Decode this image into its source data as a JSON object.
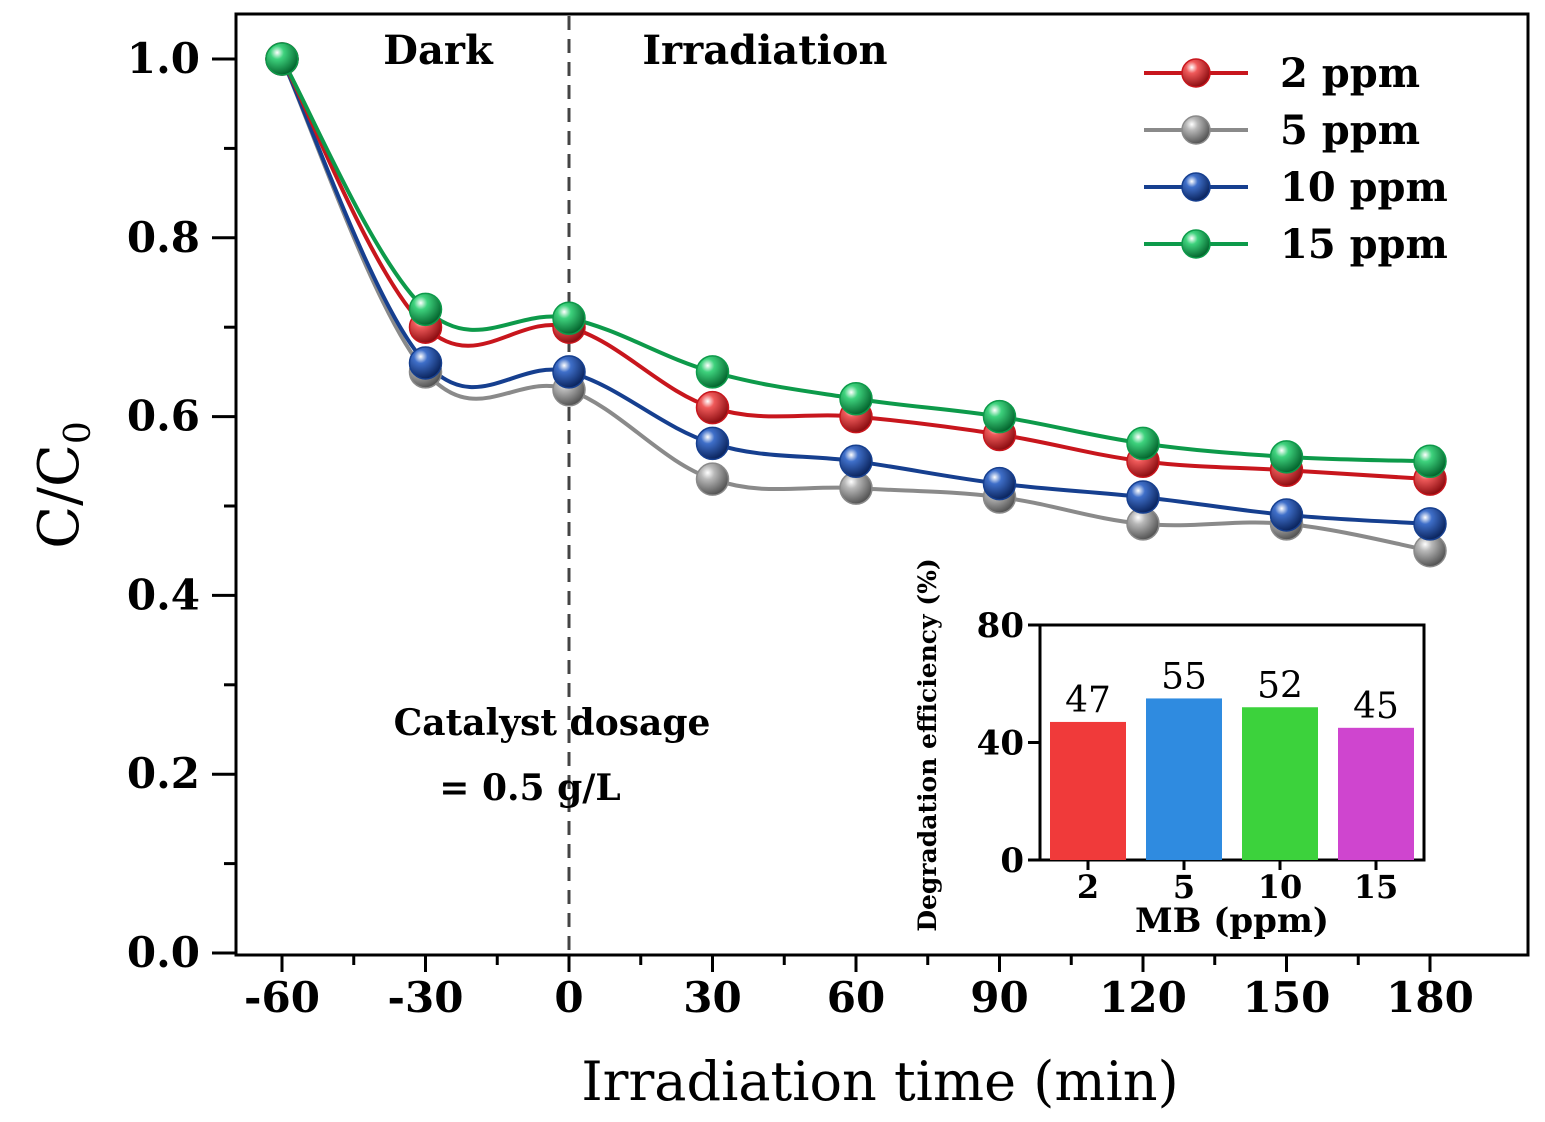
{
  "chart_data": [
    {
      "type": "line",
      "title": "",
      "xlabel": "Irradiation time (min)",
      "ylabel_main": "C/C",
      "ylabel_sub": "0",
      "x": [
        -60,
        -30,
        0,
        30,
        60,
        90,
        120,
        150,
        180
      ],
      "xticks": [
        "-60",
        "-30",
        "0",
        "30",
        "60",
        "90",
        "120",
        "150",
        "180"
      ],
      "xlim": [
        -70,
        200
      ],
      "ylim": [
        0,
        1.0
      ],
      "yticks": [
        "0.0",
        "0.2",
        "0.4",
        "0.6",
        "0.8",
        "1.0"
      ],
      "legend_position": "top-right",
      "series": [
        {
          "name": "2 ppm",
          "color": "#c8161d",
          "values": [
            1.0,
            0.7,
            0.7,
            0.61,
            0.6,
            0.58,
            0.55,
            0.54,
            0.53
          ]
        },
        {
          "name": "5 ppm",
          "color": "#8a8a8a",
          "values": [
            1.0,
            0.65,
            0.63,
            0.53,
            0.52,
            0.51,
            0.48,
            0.48,
            0.45
          ]
        },
        {
          "name": "10 ppm",
          "color": "#163f8f",
          "values": [
            1.0,
            0.66,
            0.65,
            0.57,
            0.55,
            0.525,
            0.51,
            0.49,
            0.48
          ]
        },
        {
          "name": "15 ppm",
          "color": "#0d9a4a",
          "values": [
            1.0,
            0.72,
            0.71,
            0.65,
            0.62,
            0.6,
            0.57,
            0.555,
            0.55
          ]
        }
      ],
      "annotations": {
        "dark": "Dark",
        "irradiation": "Irradiation",
        "catalyst_line1": "Catalyst dosage",
        "catalyst_line2": "= 0.5 g/L"
      },
      "divider_x": 0
    },
    {
      "type": "bar",
      "title": "",
      "xlabel": "MB (ppm)",
      "ylabel": "Degradation efficiency (%)",
      "categories": [
        "2",
        "5",
        "10",
        "15"
      ],
      "values": [
        47,
        55,
        52,
        45
      ],
      "data_labels": [
        "47",
        "55",
        "52",
        "45"
      ],
      "colors": [
        "#f03a3a",
        "#2f8be0",
        "#3cd23c",
        "#cf45cf"
      ],
      "ylim": [
        0,
        80
      ],
      "yticks": [
        "0",
        "40",
        "80"
      ]
    }
  ]
}
